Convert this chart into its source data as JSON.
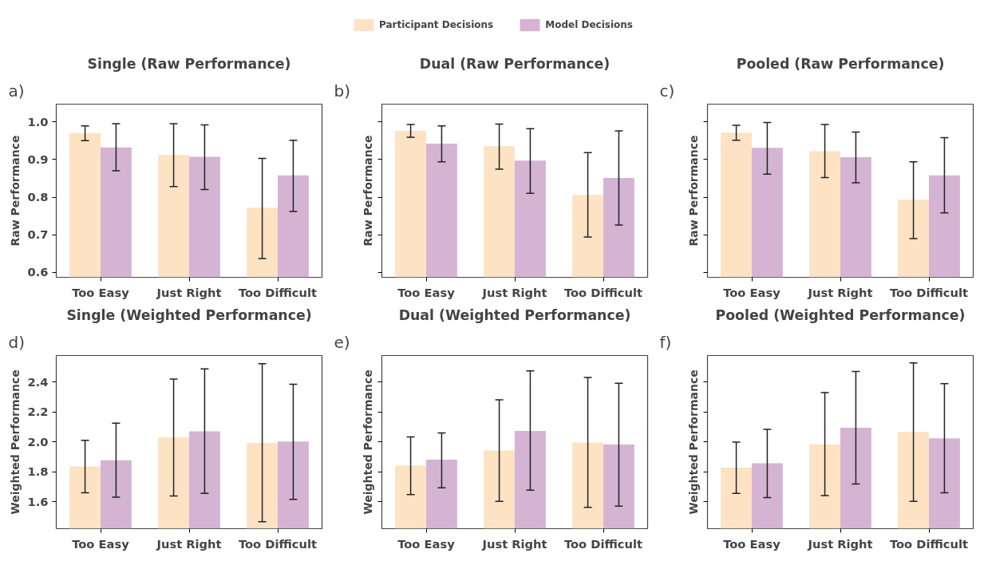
{
  "chart_data": [
    {
      "type": "bar",
      "title": "Single (Raw Performance)",
      "ylabel": "Raw Performance",
      "annotations": [
        "a)"
      ],
      "categories": [
        "Too Easy",
        "Just Right",
        "Too Difficult"
      ],
      "legend": "top",
      "grid": false,
      "series": [
        {
          "name": "Participant Decisions",
          "color": "#fde3c3",
          "values": [
            0.97,
            0.912,
            0.772
          ],
          "errors": [
            [
              0.95,
              0.989
            ],
            [
              0.828,
              0.995
            ],
            [
              0.637,
              0.903
            ]
          ]
        },
        {
          "name": "Model Decisions",
          "color": "#d4b3d3",
          "values": [
            0.932,
            0.907,
            0.858
          ],
          "errors": [
            [
              0.87,
              0.995
            ],
            [
              0.82,
              0.992
            ],
            [
              0.762,
              0.951
            ]
          ]
        }
      ],
      "ylim": [
        0.587,
        1.047
      ],
      "yticks": [
        {
          "value": 0.6,
          "label": "0.6"
        },
        {
          "value": 0.7,
          "label": "0.7"
        },
        {
          "value": 0.8,
          "label": "0.8"
        },
        {
          "value": 0.9,
          "label": "0.9"
        },
        {
          "value": 1,
          "label": "1.0"
        }
      ]
    },
    {
      "type": "bar",
      "title": "Dual (Raw Performance)",
      "ylabel": "Raw Performance",
      "annotations": [
        "b)"
      ],
      "categories": [
        "Too Easy",
        "Just Right",
        "Too Difficult"
      ],
      "grid": false,
      "tick_labels": "x",
      "series": [
        {
          "color": "#fde3c3",
          "values": [
            0.976,
            0.935,
            0.806
          ],
          "errors": [
            [
              0.959,
              0.993
            ],
            [
              0.874,
              0.994
            ],
            [
              0.694,
              0.918
            ]
          ]
        },
        {
          "color": "#d4b3d3",
          "values": [
            0.942,
            0.897,
            0.851
          ],
          "errors": [
            [
              0.894,
              0.989
            ],
            [
              0.81,
              0.982
            ],
            [
              0.726,
              0.976
            ]
          ]
        }
      ],
      "ylim": [
        0.587,
        1.047
      ],
      "yticks": [
        0.6,
        0.7,
        0.8,
        0.9,
        1
      ]
    },
    {
      "type": "bar",
      "title": "Pooled (Raw Performance)",
      "ylabel": "Raw Performance",
      "annotations": [
        "c)"
      ],
      "categories": [
        "Too Easy",
        "Just Right",
        "Too Difficult"
      ],
      "grid": false,
      "tick_labels": "x",
      "series": [
        {
          "color": "#fde3c3",
          "values": [
            0.971,
            0.922,
            0.793
          ],
          "errors": [
            [
              0.951,
              0.991
            ],
            [
              0.852,
              0.993
            ],
            [
              0.69,
              0.894
            ]
          ]
        },
        {
          "color": "#d4b3d3",
          "values": [
            0.931,
            0.906,
            0.858
          ],
          "errors": [
            [
              0.861,
              0.998
            ],
            [
              0.838,
              0.973
            ],
            [
              0.758,
              0.958
            ]
          ]
        }
      ],
      "ylim": [
        0.587,
        1.047
      ],
      "yticks": [
        0.6,
        0.7,
        0.8,
        0.9,
        1
      ]
    },
    {
      "type": "bar",
      "title": "Single (Weighted Performance)",
      "ylabel": "Weighted Performance",
      "annotations": [
        "d)"
      ],
      "categories": [
        "Too Easy",
        "Just Right",
        "Too Difficult"
      ],
      "grid": false,
      "series": [
        {
          "color": "#fde3c3",
          "values": [
            1.836,
            2.031,
            1.993
          ],
          "errors": [
            [
              1.66,
              2.01
            ],
            [
              1.639,
              2.419
            ],
            [
              1.467,
              2.521
            ]
          ]
        },
        {
          "color": "#d4b3d3",
          "values": [
            1.878,
            2.07,
            2.003
          ],
          "errors": [
            [
              1.631,
              2.125
            ],
            [
              1.657,
              2.487
            ],
            [
              1.616,
              2.385
            ]
          ]
        }
      ],
      "ylim": [
        1.421,
        2.576
      ],
      "yticks": [
        {
          "value": 1.6,
          "label": "1.6"
        },
        {
          "value": 1.8,
          "label": "1.8"
        },
        {
          "value": 2,
          "label": "2.0"
        },
        {
          "value": 2.2,
          "label": "2.2"
        },
        {
          "value": 2.4,
          "label": "2.4"
        }
      ]
    },
    {
      "type": "bar",
      "title": "Dual (Weighted Performance)",
      "ylabel": "Weighted Performance",
      "annotations": [
        "e)"
      ],
      "categories": [
        "Too Easy",
        "Just Right",
        "Too Difficult"
      ],
      "grid": false,
      "tick_labels": "x",
      "series": [
        {
          "color": "#fde3c3",
          "values": [
            1.843,
            1.943,
            1.996
          ],
          "errors": [
            [
              1.648,
              2.033
            ],
            [
              1.603,
              2.281
            ],
            [
              1.564,
              2.43
            ]
          ]
        },
        {
          "color": "#d4b3d3",
          "values": [
            1.882,
            2.073,
            1.982
          ],
          "errors": [
            [
              1.694,
              2.06
            ],
            [
              1.678,
              2.473
            ],
            [
              1.572,
              2.391
            ]
          ]
        }
      ],
      "ylim": [
        1.421,
        2.576
      ],
      "yticks": [
        1.6,
        1.8,
        2,
        2.2,
        2.4
      ]
    },
    {
      "type": "bar",
      "title": "Pooled (Weighted Performance)",
      "ylabel": "Weighted Performance",
      "annotations": [
        "f)"
      ],
      "categories": [
        "Too Easy",
        "Just Right",
        "Too Difficult"
      ],
      "grid": false,
      "tick_labels": "x",
      "series": [
        {
          "color": "#fde3c3",
          "values": [
            1.828,
            1.984,
            2.066
          ],
          "errors": [
            [
              1.657,
              1.999
            ],
            [
              1.642,
              2.328
            ],
            [
              1.603,
              2.527
            ]
          ]
        },
        {
          "color": "#d4b3d3",
          "values": [
            1.857,
            2.094,
            2.024
          ],
          "errors": [
            [
              1.628,
              2.084
            ],
            [
              1.719,
              2.47
            ],
            [
              1.66,
              2.388
            ]
          ]
        }
      ],
      "ylim": [
        1.421,
        2.576
      ],
      "yticks": [
        1.6,
        1.8,
        2,
        2.2,
        2.4
      ]
    }
  ]
}
